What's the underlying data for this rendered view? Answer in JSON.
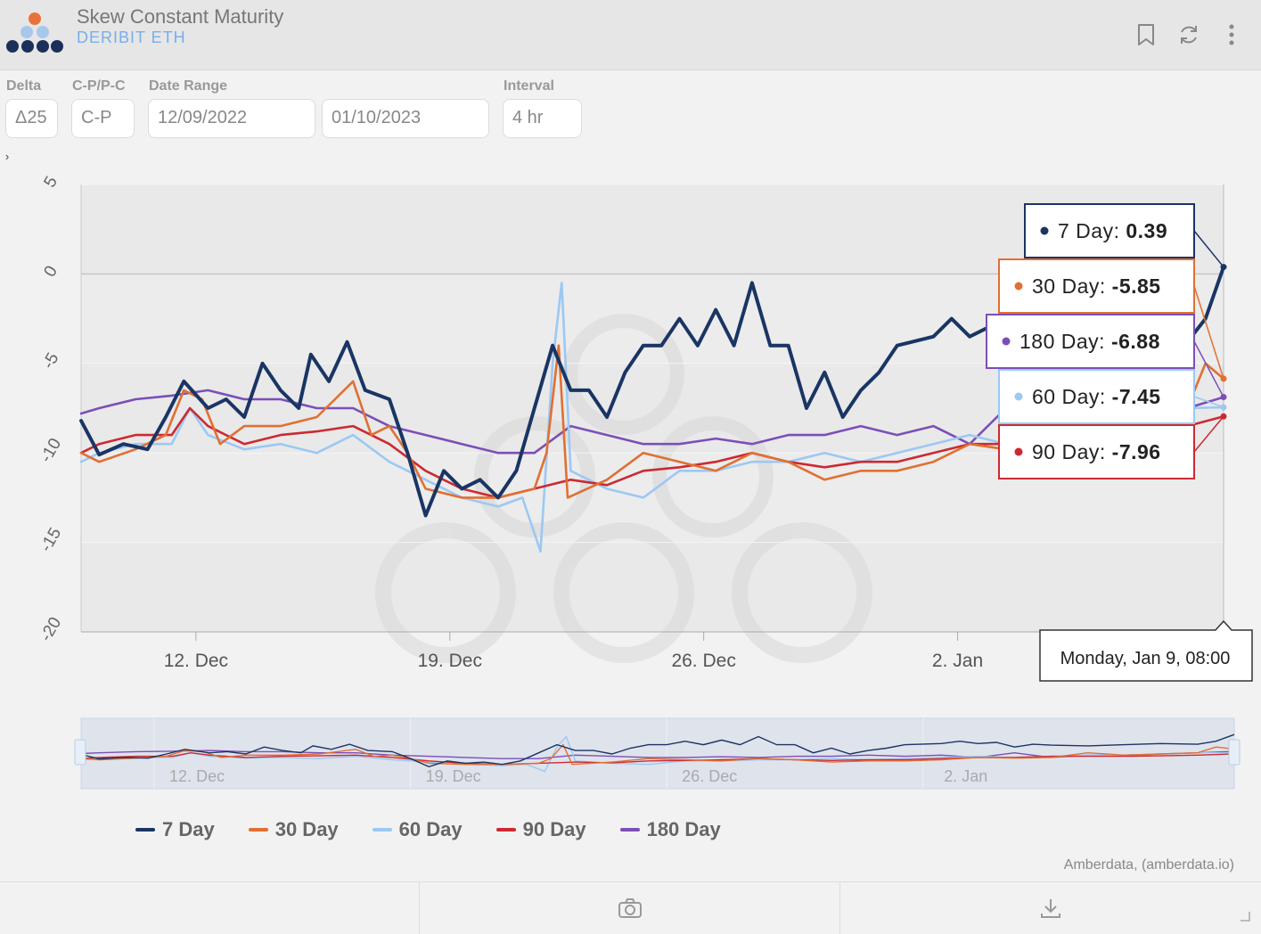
{
  "header": {
    "title": "Skew Constant Maturity",
    "subtitle": "DERIBIT ETH",
    "icons": [
      "bookmark-icon",
      "refresh-icon",
      "more-vertical-icon"
    ]
  },
  "controls": {
    "delta": {
      "label": "Delta",
      "value": "Δ25"
    },
    "cp": {
      "label": "C-P/P-C",
      "value": "C-P"
    },
    "date_range": {
      "label": "Date Range",
      "start": "12/09/2022",
      "end": "01/10/2023"
    },
    "interval": {
      "label": "Interval",
      "value": "4 hr"
    }
  },
  "colors": {
    "7 Day": "#1a3564",
    "30 Day": "#e07032",
    "60 Day": "#9cc8f3",
    "90 Day": "#cc2a32",
    "180 Day": "#7b4fb7"
  },
  "chart_data": {
    "type": "line",
    "title": "",
    "xlabel": "",
    "ylabel": "",
    "ylim": [
      -20,
      5
    ],
    "yticks": [
      5,
      0,
      -5,
      -10,
      -15,
      -20
    ],
    "ytick_labels": [
      "5",
      "0",
      "-5",
      "-10",
      "-15",
      "-20"
    ],
    "x_ticks": [
      "12. Dec",
      "19. Dec",
      "26. Dec",
      "2. Jan"
    ],
    "x_tick_dates": [
      "2022-12-12",
      "2022-12-19",
      "2022-12-26",
      "2023-01-02"
    ],
    "xlim": [
      "2022-12-08 20:00",
      "2023-01-09 08:00"
    ],
    "grid": true,
    "legend": "bottom",
    "series": [
      {
        "name": "7 Day",
        "points": [
          [
            "2022-12-08 20:00",
            -8.2
          ],
          [
            "2022-12-09 08:00",
            -10.1
          ],
          [
            "2022-12-10 00:00",
            -9.5
          ],
          [
            "2022-12-10 16:00",
            -9.8
          ],
          [
            "2022-12-11 04:00",
            -8.0
          ],
          [
            "2022-12-11 16:00",
            -6.0
          ],
          [
            "2022-12-12 08:00",
            -7.5
          ],
          [
            "2022-12-12 20:00",
            -7.0
          ],
          [
            "2022-12-13 08:00",
            -8.0
          ],
          [
            "2022-12-13 20:00",
            -5.0
          ],
          [
            "2022-12-14 08:00",
            -6.5
          ],
          [
            "2022-12-14 20:00",
            -7.5
          ],
          [
            "2022-12-15 04:00",
            -4.5
          ],
          [
            "2022-12-15 16:00",
            -6.0
          ],
          [
            "2022-12-16 04:00",
            -3.8
          ],
          [
            "2022-12-16 16:00",
            -6.5
          ],
          [
            "2022-12-17 08:00",
            -7.0
          ],
          [
            "2022-12-17 20:00",
            -10.0
          ],
          [
            "2022-12-18 08:00",
            -13.5
          ],
          [
            "2022-12-18 20:00",
            -11.0
          ],
          [
            "2022-12-19 08:00",
            -12.0
          ],
          [
            "2022-12-19 20:00",
            -11.5
          ],
          [
            "2022-12-20 08:00",
            -12.5
          ],
          [
            "2022-12-20 20:00",
            -11.0
          ],
          [
            "2022-12-21 08:00",
            -7.5
          ],
          [
            "2022-12-21 20:00",
            -4.0
          ],
          [
            "2022-12-22 08:00",
            -6.5
          ],
          [
            "2022-12-22 20:00",
            -6.5
          ],
          [
            "2022-12-23 08:00",
            -8.0
          ],
          [
            "2022-12-23 20:00",
            -5.5
          ],
          [
            "2022-12-24 08:00",
            -4.0
          ],
          [
            "2022-12-24 20:00",
            -4.0
          ],
          [
            "2022-12-25 08:00",
            -2.5
          ],
          [
            "2022-12-25 20:00",
            -4.0
          ],
          [
            "2022-12-26 08:00",
            -2.0
          ],
          [
            "2022-12-26 20:00",
            -4.0
          ],
          [
            "2022-12-27 08:00",
            -0.5
          ],
          [
            "2022-12-27 20:00",
            -4.0
          ],
          [
            "2022-12-28 08:00",
            -4.0
          ],
          [
            "2022-12-28 20:00",
            -7.5
          ],
          [
            "2022-12-29 08:00",
            -5.5
          ],
          [
            "2022-12-29 20:00",
            -8.0
          ],
          [
            "2022-12-30 08:00",
            -6.5
          ],
          [
            "2022-12-30 20:00",
            -5.5
          ],
          [
            "2022-12-31 08:00",
            -4.0
          ],
          [
            "2023-01-01 08:00",
            -3.5
          ],
          [
            "2023-01-01 20:00",
            -2.5
          ],
          [
            "2023-01-02 08:00",
            -3.5
          ],
          [
            "2023-01-02 20:00",
            -3.0
          ],
          [
            "2023-01-03 08:00",
            -5.0
          ],
          [
            "2023-01-03 20:00",
            -3.8
          ],
          [
            "2023-01-04 08:00",
            -4.2
          ],
          [
            "2023-01-05 08:00",
            -4.5
          ],
          [
            "2023-01-06 08:00",
            -4.0
          ],
          [
            "2023-01-07 08:00",
            -3.5
          ],
          [
            "2023-01-08 08:00",
            -3.8
          ],
          [
            "2023-01-08 20:00",
            -2.5
          ],
          [
            "2023-01-09 08:00",
            0.39
          ]
        ]
      },
      {
        "name": "30 Day",
        "points": [
          [
            "2022-12-08 20:00",
            -10.0
          ],
          [
            "2022-12-09 08:00",
            -10.5
          ],
          [
            "2022-12-10 08:00",
            -9.8
          ],
          [
            "2022-12-11 04:00",
            -9.0
          ],
          [
            "2022-12-11 16:00",
            -6.5
          ],
          [
            "2022-12-12 04:00",
            -7.0
          ],
          [
            "2022-12-12 16:00",
            -9.5
          ],
          [
            "2022-12-13 08:00",
            -8.5
          ],
          [
            "2022-12-14 08:00",
            -8.5
          ],
          [
            "2022-12-15 08:00",
            -8.0
          ],
          [
            "2022-12-15 20:00",
            -7.0
          ],
          [
            "2022-12-16 08:00",
            -6.0
          ],
          [
            "2022-12-16 20:00",
            -9.0
          ],
          [
            "2022-12-17 08:00",
            -8.5
          ],
          [
            "2022-12-17 20:00",
            -10.0
          ],
          [
            "2022-12-18 08:00",
            -12.0
          ],
          [
            "2022-12-19 08:00",
            -12.5
          ],
          [
            "2022-12-20 08:00",
            -12.5
          ],
          [
            "2022-12-21 08:00",
            -12.0
          ],
          [
            "2022-12-21 16:00",
            -10.0
          ],
          [
            "2022-12-22 00:00",
            -4.0
          ],
          [
            "2022-12-22 06:00",
            -12.5
          ],
          [
            "2022-12-23 08:00",
            -11.5
          ],
          [
            "2022-12-24 08:00",
            -10.0
          ],
          [
            "2022-12-25 08:00",
            -10.5
          ],
          [
            "2022-12-26 08:00",
            -11.0
          ],
          [
            "2022-12-27 08:00",
            -10.0
          ],
          [
            "2022-12-28 08:00",
            -10.5
          ],
          [
            "2022-12-29 08:00",
            -11.5
          ],
          [
            "2022-12-30 08:00",
            -11.0
          ],
          [
            "2022-12-31 08:00",
            -11.0
          ],
          [
            "2023-01-01 08:00",
            -10.5
          ],
          [
            "2023-01-02 08:00",
            -9.5
          ],
          [
            "2023-01-03 08:00",
            -9.8
          ],
          [
            "2023-01-04 08:00",
            -9.5
          ],
          [
            "2023-01-05 08:00",
            -7.5
          ],
          [
            "2023-01-06 08:00",
            -8.5
          ],
          [
            "2023-01-07 08:00",
            -8.0
          ],
          [
            "2023-01-08 08:00",
            -7.5
          ],
          [
            "2023-01-08 20:00",
            -5.0
          ],
          [
            "2023-01-09 08:00",
            -5.85
          ]
        ]
      },
      {
        "name": "60 Day",
        "points": [
          [
            "2022-12-08 20:00",
            -10.5
          ],
          [
            "2022-12-09 08:00",
            -10.0
          ],
          [
            "2022-12-10 08:00",
            -9.5
          ],
          [
            "2022-12-11 08:00",
            -9.5
          ],
          [
            "2022-12-11 20:00",
            -7.5
          ],
          [
            "2022-12-12 08:00",
            -9.0
          ],
          [
            "2022-12-13 08:00",
            -9.8
          ],
          [
            "2022-12-14 08:00",
            -9.5
          ],
          [
            "2022-12-15 08:00",
            -10.0
          ],
          [
            "2022-12-16 08:00",
            -9.0
          ],
          [
            "2022-12-17 08:00",
            -10.5
          ],
          [
            "2022-12-18 08:00",
            -11.5
          ],
          [
            "2022-12-19 08:00",
            -12.5
          ],
          [
            "2022-12-20 08:00",
            -13.0
          ],
          [
            "2022-12-21 00:00",
            -12.5
          ],
          [
            "2022-12-21 12:00",
            -15.5
          ],
          [
            "2022-12-21 20:00",
            -5.0
          ],
          [
            "2022-12-22 02:00",
            -0.5
          ],
          [
            "2022-12-22 08:00",
            -11.0
          ],
          [
            "2022-12-23 08:00",
            -12.0
          ],
          [
            "2022-12-24 08:00",
            -12.5
          ],
          [
            "2022-12-25 08:00",
            -11.0
          ],
          [
            "2022-12-26 08:00",
            -11.0
          ],
          [
            "2022-12-27 08:00",
            -10.5
          ],
          [
            "2022-12-28 08:00",
            -10.5
          ],
          [
            "2022-12-29 08:00",
            -10.0
          ],
          [
            "2022-12-30 08:00",
            -10.5
          ],
          [
            "2022-12-31 08:00",
            -10.0
          ],
          [
            "2023-01-01 08:00",
            -9.5
          ],
          [
            "2023-01-02 08:00",
            -9.0
          ],
          [
            "2023-01-03 08:00",
            -9.5
          ],
          [
            "2023-01-04 08:00",
            -9.0
          ],
          [
            "2023-01-05 08:00",
            -8.5
          ],
          [
            "2023-01-06 08:00",
            -8.5
          ],
          [
            "2023-01-07 08:00",
            -8.0
          ],
          [
            "2023-01-08 08:00",
            -7.5
          ],
          [
            "2023-01-09 08:00",
            -7.45
          ]
        ]
      },
      {
        "name": "90 Day",
        "points": [
          [
            "2022-12-08 20:00",
            -10.0
          ],
          [
            "2022-12-09 08:00",
            -9.5
          ],
          [
            "2022-12-10 08:00",
            -9.0
          ],
          [
            "2022-12-11 08:00",
            -9.0
          ],
          [
            "2022-12-11 20:00",
            -7.5
          ],
          [
            "2022-12-12 08:00",
            -8.5
          ],
          [
            "2022-12-13 08:00",
            -9.5
          ],
          [
            "2022-12-14 08:00",
            -9.0
          ],
          [
            "2022-12-15 08:00",
            -8.8
          ],
          [
            "2022-12-16 08:00",
            -8.5
          ],
          [
            "2022-12-17 08:00",
            -9.5
          ],
          [
            "2022-12-18 08:00",
            -11.0
          ],
          [
            "2022-12-19 08:00",
            -12.0
          ],
          [
            "2022-12-20 08:00",
            -12.5
          ],
          [
            "2022-12-21 08:00",
            -12.0
          ],
          [
            "2022-12-22 08:00",
            -11.5
          ],
          [
            "2022-12-23 08:00",
            -11.8
          ],
          [
            "2022-12-24 08:00",
            -11.0
          ],
          [
            "2022-12-25 08:00",
            -10.8
          ],
          [
            "2022-12-26 08:00",
            -10.5
          ],
          [
            "2022-12-27 08:00",
            -10.0
          ],
          [
            "2022-12-28 08:00",
            -10.5
          ],
          [
            "2022-12-29 08:00",
            -10.8
          ],
          [
            "2022-12-30 08:00",
            -10.5
          ],
          [
            "2022-12-31 08:00",
            -10.5
          ],
          [
            "2023-01-01 08:00",
            -10.0
          ],
          [
            "2023-01-02 08:00",
            -9.5
          ],
          [
            "2023-01-03 08:00",
            -9.5
          ],
          [
            "2023-01-04 08:00",
            -9.0
          ],
          [
            "2023-01-05 08:00",
            -9.0
          ],
          [
            "2023-01-06 08:00",
            -9.0
          ],
          [
            "2023-01-07 08:00",
            -8.8
          ],
          [
            "2023-01-08 08:00",
            -8.5
          ],
          [
            "2023-01-09 08:00",
            -7.96
          ]
        ]
      },
      {
        "name": "180 Day",
        "points": [
          [
            "2022-12-08 20:00",
            -7.8
          ],
          [
            "2022-12-09 08:00",
            -7.5
          ],
          [
            "2022-12-10 08:00",
            -7.0
          ],
          [
            "2022-12-11 08:00",
            -6.8
          ],
          [
            "2022-12-12 08:00",
            -6.5
          ],
          [
            "2022-12-13 08:00",
            -7.0
          ],
          [
            "2022-12-14 08:00",
            -7.0
          ],
          [
            "2022-12-15 08:00",
            -7.5
          ],
          [
            "2022-12-16 08:00",
            -7.5
          ],
          [
            "2022-12-17 08:00",
            -8.5
          ],
          [
            "2022-12-18 08:00",
            -9.0
          ],
          [
            "2022-12-19 08:00",
            -9.5
          ],
          [
            "2022-12-20 08:00",
            -10.0
          ],
          [
            "2022-12-21 08:00",
            -10.0
          ],
          [
            "2022-12-22 08:00",
            -8.5
          ],
          [
            "2022-12-23 08:00",
            -9.0
          ],
          [
            "2022-12-24 08:00",
            -9.5
          ],
          [
            "2022-12-25 08:00",
            -9.5
          ],
          [
            "2022-12-26 08:00",
            -9.2
          ],
          [
            "2022-12-27 08:00",
            -9.5
          ],
          [
            "2022-12-28 08:00",
            -9.0
          ],
          [
            "2022-12-29 08:00",
            -9.0
          ],
          [
            "2022-12-30 08:00",
            -8.5
          ],
          [
            "2022-12-31 08:00",
            -9.0
          ],
          [
            "2023-01-01 08:00",
            -8.5
          ],
          [
            "2023-01-02 08:00",
            -9.5
          ],
          [
            "2023-01-03 08:00",
            -7.5
          ],
          [
            "2023-01-04 08:00",
            -9.5
          ],
          [
            "2023-01-05 08:00",
            -8.5
          ],
          [
            "2023-01-06 08:00",
            -8.5
          ],
          [
            "2023-01-07 08:00",
            -8.0
          ],
          [
            "2023-01-08 08:00",
            -7.5
          ],
          [
            "2023-01-09 08:00",
            -6.88
          ]
        ]
      }
    ],
    "tooltip": {
      "date": "Monday, Jan 9, 08:00",
      "entries": [
        {
          "name": "7 Day",
          "label": "7 Day: ",
          "value": "0.39"
        },
        {
          "name": "30 Day",
          "label": "30 Day: ",
          "value": "-5.85"
        },
        {
          "name": "180 Day",
          "label": "180 Day: ",
          "value": "-6.88"
        },
        {
          "name": "60 Day",
          "label": "60 Day: ",
          "value": "-7.45"
        },
        {
          "name": "90 Day",
          "label": "90 Day: ",
          "value": "-7.96"
        }
      ]
    },
    "navigator_ticks": [
      "12. Dec",
      "19. Dec",
      "26. Dec",
      "2. Jan"
    ]
  },
  "legend": [
    "7 Day",
    "30 Day",
    "60 Day",
    "90 Day",
    "180 Day"
  ],
  "credit": "Amberdata, (amberdata.io)"
}
